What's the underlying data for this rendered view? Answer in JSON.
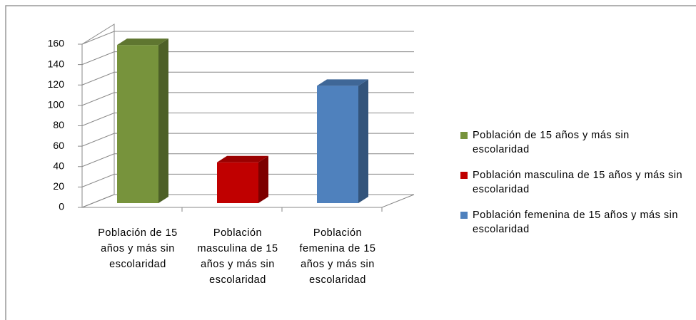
{
  "chart_data": {
    "type": "bar3d",
    "categories": [
      "Población de 15 años y más sin escolaridad",
      "Población masculina de 15 años y más sin escolaridad",
      "Población femenina de 15 años y más sin escolaridad"
    ],
    "series": [
      {
        "name": "Población de 15 años y más sin escolaridad",
        "color": "#77933c",
        "values": [
          155,
          null,
          null
        ]
      },
      {
        "name": "Población masculina de 15 años y más sin escolaridad",
        "color": "#c00000",
        "values": [
          null,
          40,
          null
        ]
      },
      {
        "name": "Población femenina de 15 años y más sin escolaridad",
        "color": "#4f81bd",
        "values": [
          null,
          null,
          115
        ]
      }
    ],
    "ylim": [
      0,
      160
    ],
    "yticks": [
      0,
      20,
      40,
      60,
      80,
      100,
      120,
      140,
      160
    ],
    "grid": true,
    "legend": "right"
  }
}
